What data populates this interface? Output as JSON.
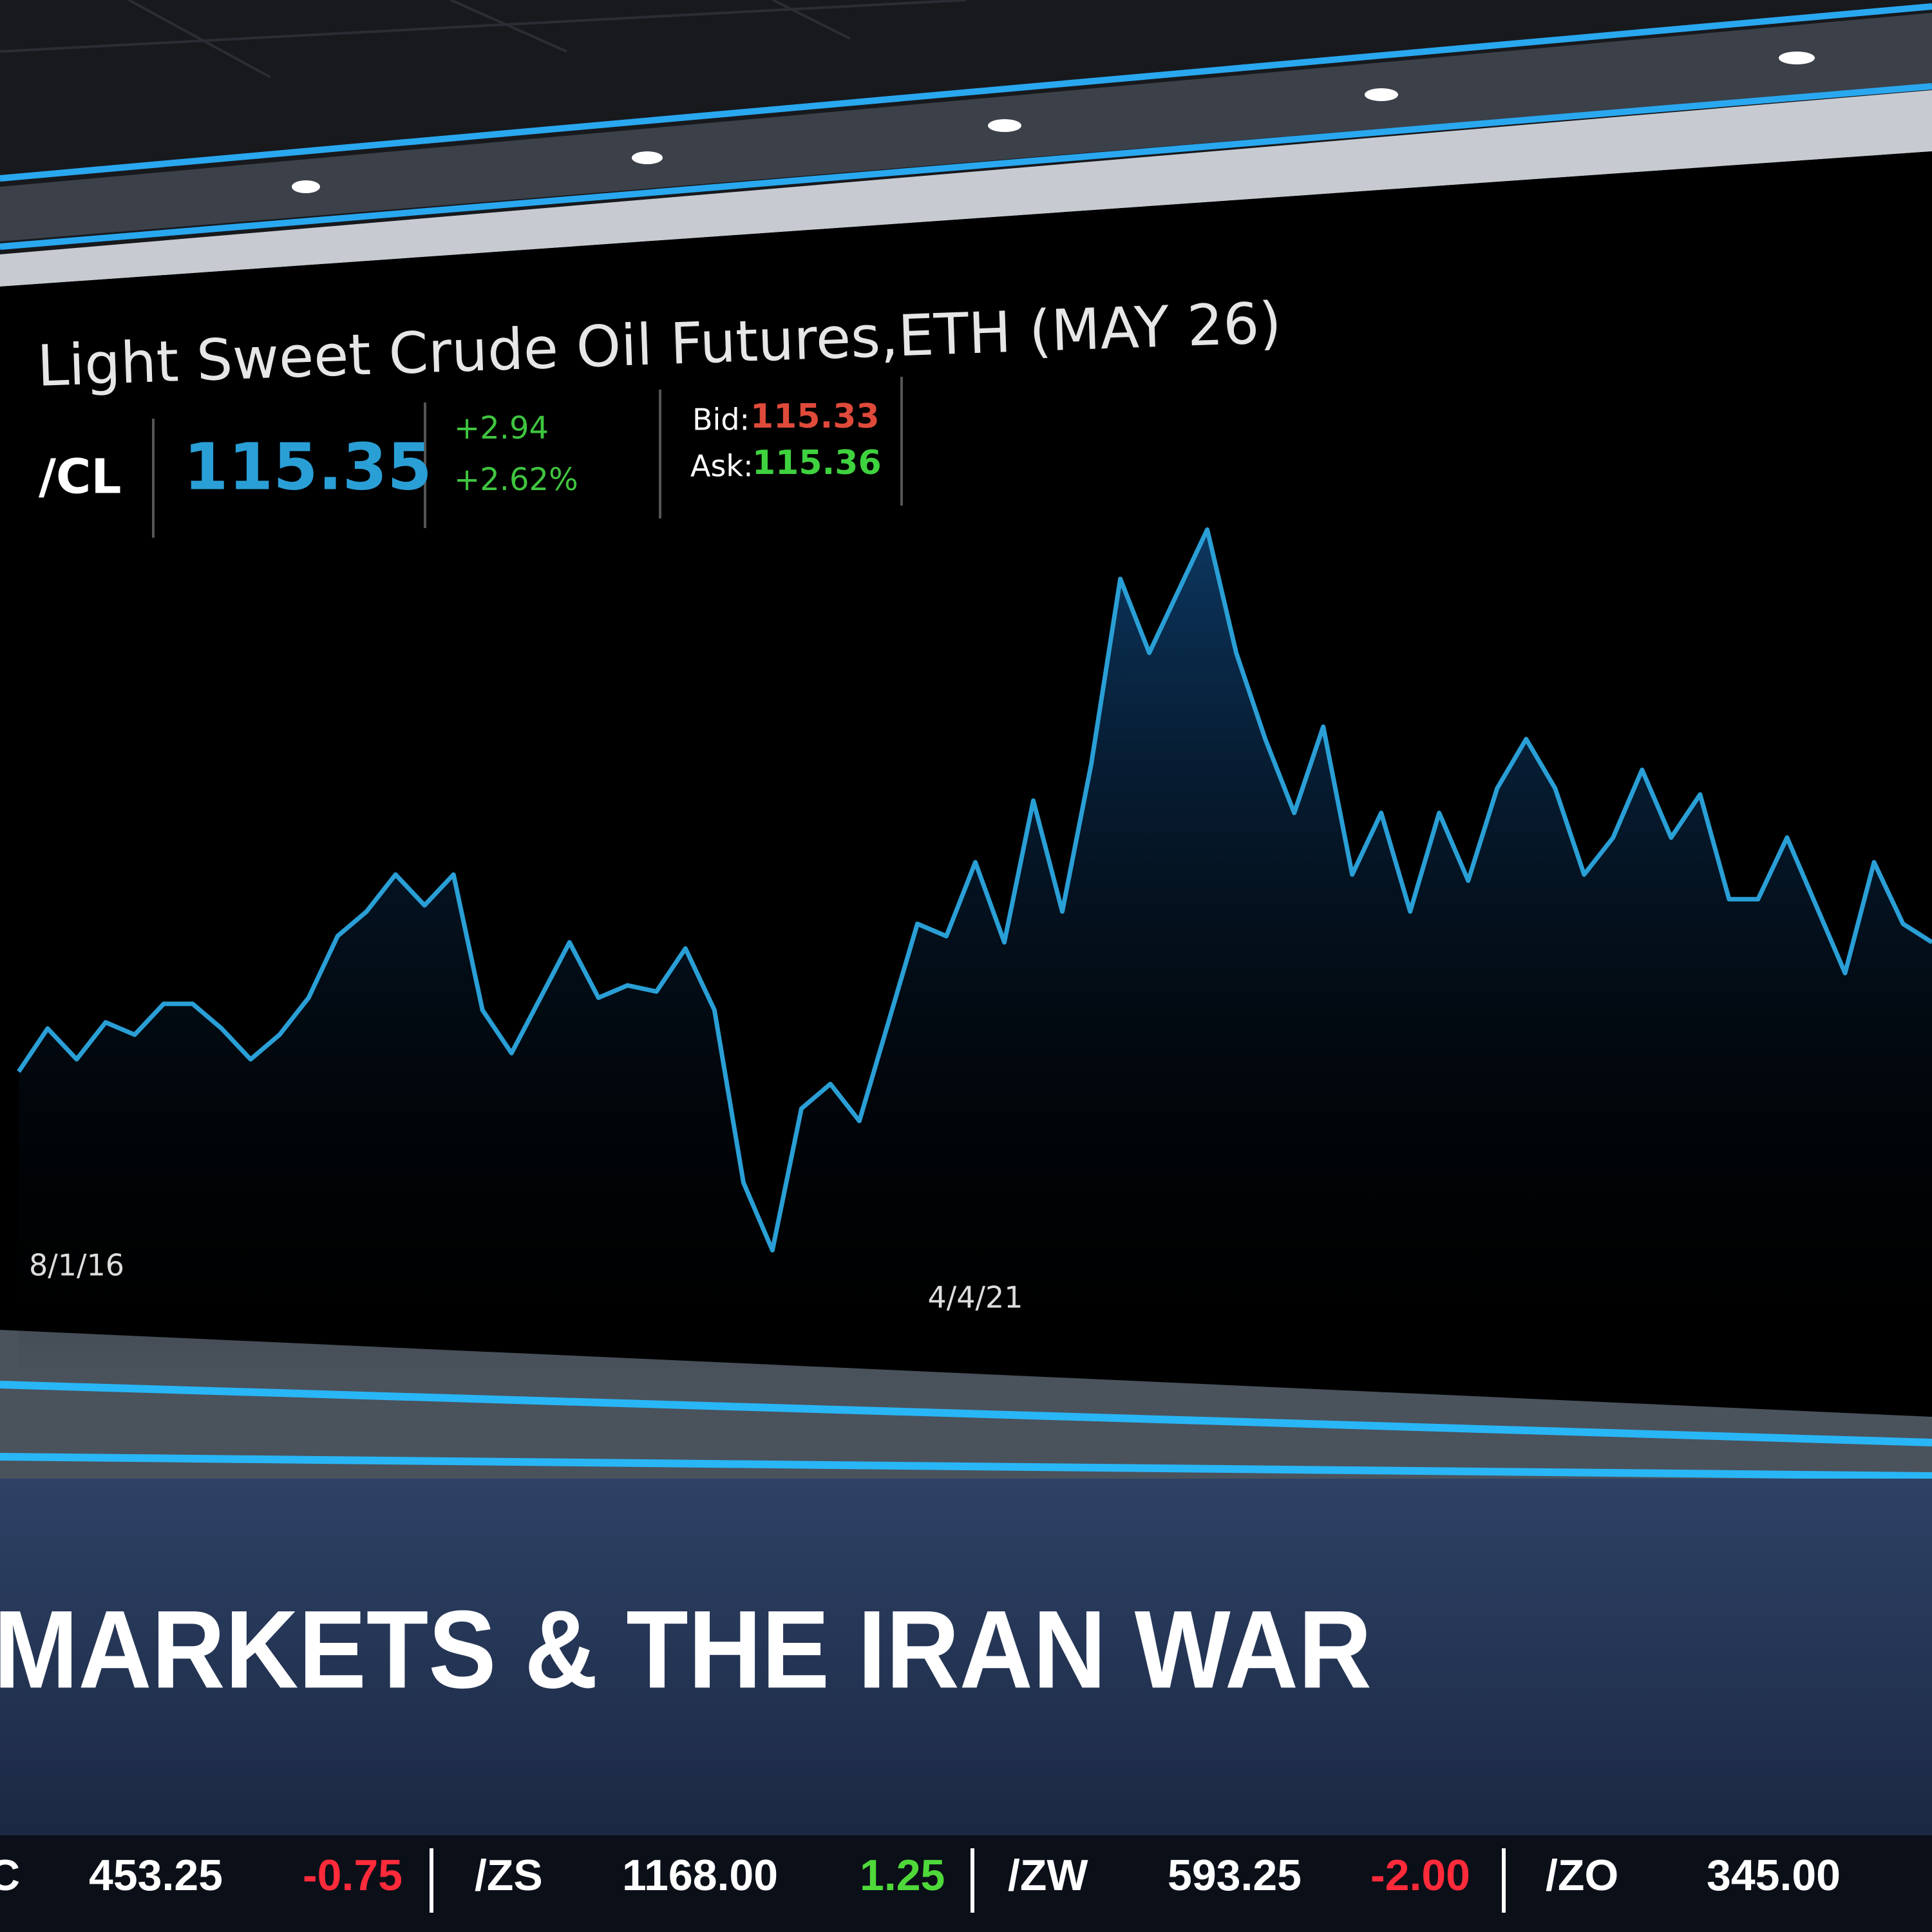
{
  "chart_data": {
    "type": "line",
    "title": "Light Sweet Crude Oil Futures,ETH (MAY 26)",
    "quote": {
      "symbol": "/CL",
      "last": "115.35",
      "change": "+2.94",
      "change_pct": "+2.62%",
      "bid_label": "Bid:",
      "bid": "115.33",
      "ask_label": "Ask:",
      "ask": "115.36"
    },
    "categories": [
      null,
      null,
      "8/1/16",
      null,
      null,
      null,
      null,
      null,
      null,
      null,
      null,
      null,
      null,
      null,
      null,
      null,
      null,
      null,
      null,
      null,
      null,
      null,
      null,
      null,
      null,
      null,
      null,
      null,
      null,
      null,
      null,
      null,
      null,
      "4/4/21",
      null,
      null,
      null,
      null,
      null,
      null,
      null,
      null,
      null,
      null,
      null,
      null,
      null,
      null,
      null,
      null,
      null,
      null,
      null,
      null,
      null,
      null,
      null,
      null,
      null,
      null,
      null,
      null,
      null,
      null,
      null,
      null,
      null
    ],
    "series": [
      {
        "color": "#2a9fd6",
        "values": [
          23,
          26.5,
          24,
          27,
          26,
          28.5,
          28.5,
          26.5,
          24,
          26,
          29,
          34,
          36,
          39,
          36.5,
          39,
          28,
          24.5,
          29,
          33.5,
          29,
          30,
          29.5,
          33,
          28,
          14,
          8.5,
          20,
          22,
          19,
          27,
          35,
          34,
          40,
          33.5,
          45,
          36,
          48,
          63,
          57,
          62,
          67,
          57,
          50,
          44,
          51,
          39,
          44,
          36,
          44,
          38.5,
          46,
          50,
          46,
          39,
          42,
          47.5,
          42,
          45.5,
          37,
          37,
          42,
          36.5,
          31,
          40,
          35,
          33.5
        ]
      }
    ],
    "ylim": [
      0,
      70
    ]
  },
  "headline": "MARKETS & THE IRAN WAR",
  "ticker": [
    {
      "symbol": "C",
      "price": "453.25",
      "change": "-0.75"
    },
    {
      "symbol": "/ZS",
      "price": "1168.00",
      "change": "1.25"
    },
    {
      "symbol": "/ZW",
      "price": "593.25",
      "change": "-2.00"
    },
    {
      "symbol": "/ZO",
      "price": "345.00"
    }
  ]
}
